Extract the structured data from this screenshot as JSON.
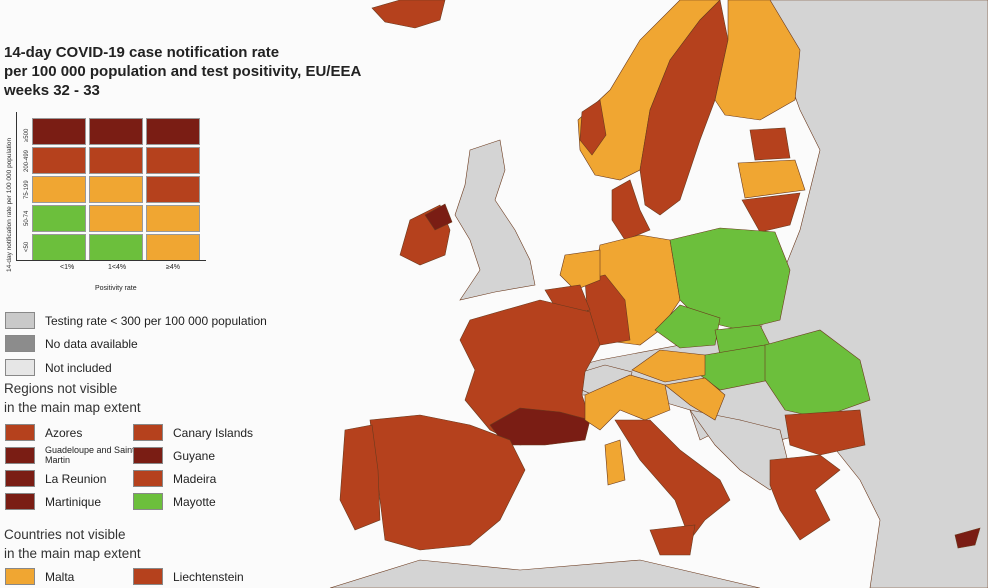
{
  "header": {
    "title": [
      "14-day COVID-19 case notification rate",
      "per 100 000 population and test positivity, EU/EEA",
      "weeks 32 - 33"
    ]
  },
  "matrix": {
    "y_label": "14-day notification rate per 100 000 population",
    "y_ticks": [
      "≥500",
      "200-499",
      "75-199",
      "50-74",
      "<50"
    ],
    "x_ticks": [
      "<1%",
      "1<4%",
      "≥4%"
    ],
    "x_label": "Positivity rate"
  },
  "legend": {
    "items": [
      "Testing rate < 300 per 100 000 population",
      "No data available",
      "Not included"
    ]
  },
  "regions": {
    "title": [
      "Regions not visible",
      "in the main map extent"
    ],
    "items": [
      "Azores",
      "Canary Islands",
      "Guadeloupe and Saint Martin",
      "Guyane",
      "La Reunion",
      "Madeira",
      "Martinique",
      "Mayotte"
    ]
  },
  "countries": {
    "title": [
      "Countries not visible",
      "in the main map extent"
    ],
    "items": [
      "Malta",
      "Liechtenstein"
    ]
  }
}
